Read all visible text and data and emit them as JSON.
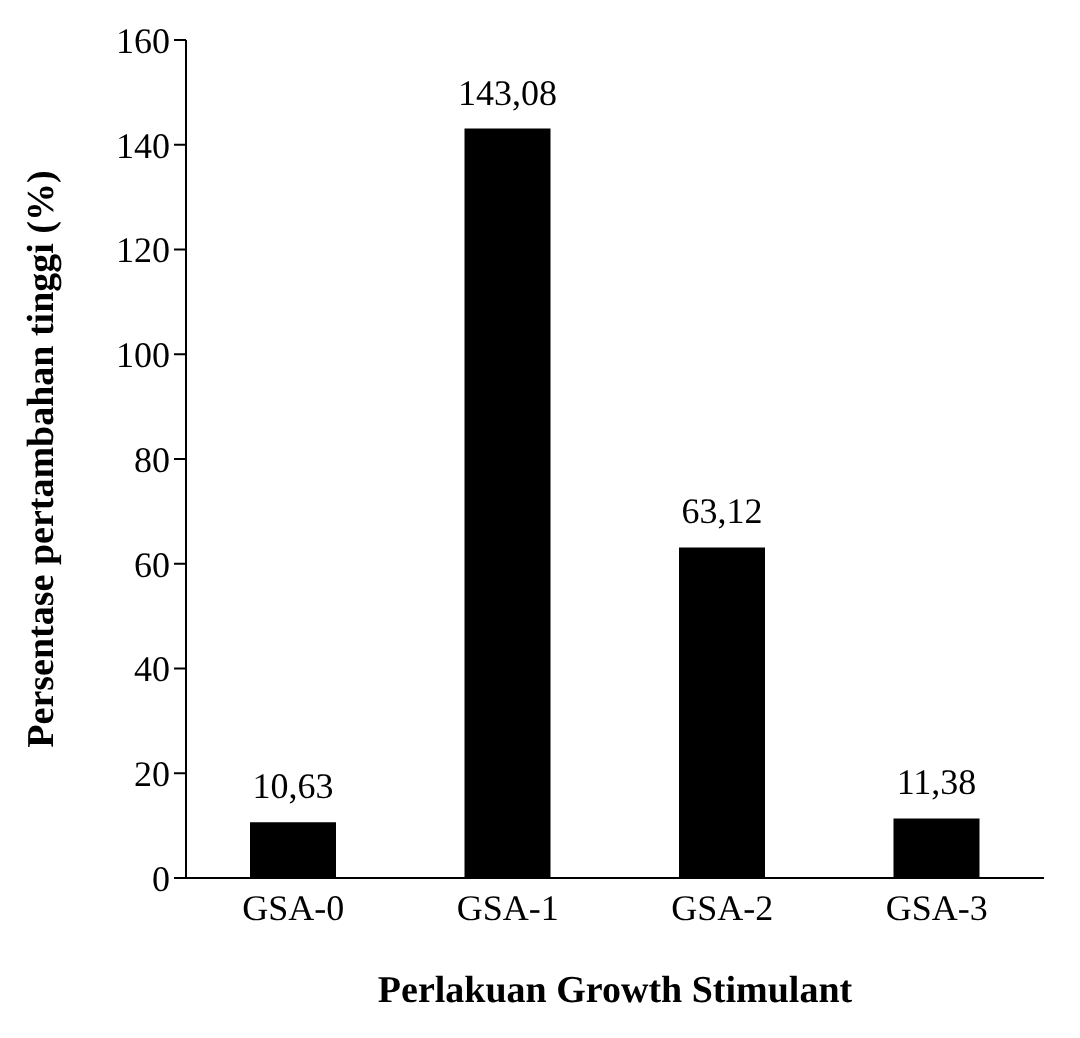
{
  "chart_data": {
    "type": "bar",
    "xlabel": "Perlakuan Growth Stimulant",
    "ylabel": "Persentase pertambahan tinggi (%)",
    "categories": [
      "GSA-0",
      "GSA-1",
      "GSA-2",
      "GSA-3"
    ],
    "values": [
      10.63,
      143.08,
      63.12,
      11.38
    ],
    "value_labels": [
      "10,63",
      "143,08",
      "63,12",
      "11,38"
    ],
    "color": "#000000",
    "ylim": [
      0,
      160
    ],
    "yticks": [
      0,
      20,
      40,
      60,
      80,
      100,
      120,
      140,
      160
    ],
    "grid": false,
    "legend": false
  }
}
